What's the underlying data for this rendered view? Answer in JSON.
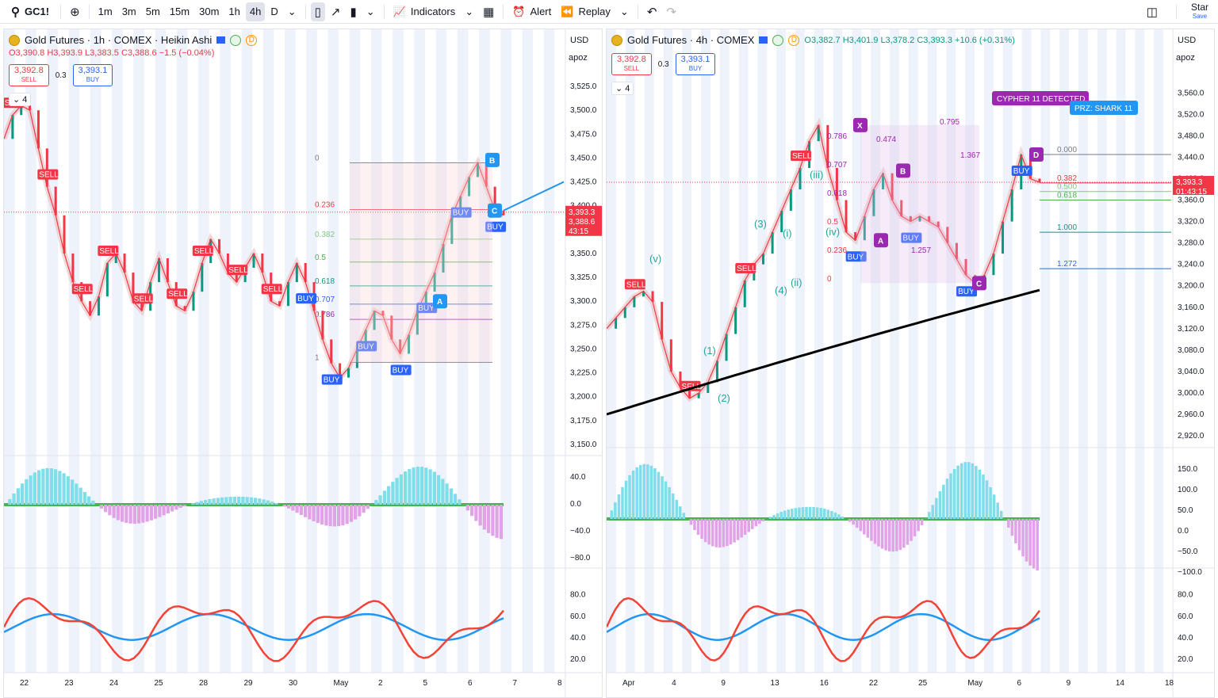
{
  "topbar": {
    "symbol": "GC1!",
    "timeframes": [
      "1m",
      "3m",
      "5m",
      "15m",
      "30m",
      "1h",
      "4h",
      "D"
    ],
    "active_timeframe": "4h",
    "indicators_label": "Indicators",
    "alert_label": "Alert",
    "replay_label": "Replay",
    "star_label": "Star",
    "save_label": "Save"
  },
  "left_chart": {
    "title": "Gold Futures · 1h · COMEX · Heikin Ashi",
    "badge": "D",
    "ohlc": {
      "o": "O3,390.8",
      "h": "H3,393.9",
      "l": "L3,383.5",
      "c": "C3,388.6",
      "chg": "−1.5 (−0.04%)"
    },
    "sell_price": "3,392.8",
    "sell_label": "SELL",
    "spread": "0.3",
    "buy_price": "3,393.1",
    "buy_label": "BUY",
    "collapse_count": "4",
    "currency": "USD",
    "scale_mode": "apoz",
    "price_ticks": [
      "3,525.0",
      "3,500.0",
      "3,475.0",
      "3,450.0",
      "3,425.0",
      "3,400.0",
      "3,375.0",
      "3,350.0",
      "3,325.0",
      "3,300.0",
      "3,275.0",
      "3,250.0",
      "3,225.0",
      "3,200.0",
      "3,175.0",
      "3,150.0"
    ],
    "price_range": [
      3145,
      3535
    ],
    "current_price": "3,393.3",
    "current_price2": "3,388.6",
    "countdown": "43:15",
    "osc_ticks": [
      "40.0",
      "0.0",
      "−40.0",
      "−80.0"
    ],
    "rsi_ticks": [
      "80.0",
      "60.0",
      "40.0",
      "20.0"
    ],
    "time_ticks": [
      "22",
      "23",
      "24",
      "25",
      "28",
      "29",
      "30",
      "May",
      "2",
      "5",
      "6",
      "7",
      "8"
    ],
    "fib_levels": [
      {
        "label": "0",
        "value": 3445
      },
      {
        "label": "0.236",
        "value": 3396
      },
      {
        "label": "0.382",
        "value": 3365
      },
      {
        "label": "0.5",
        "value": 3341
      },
      {
        "label": "0.618",
        "value": 3316
      },
      {
        "label": "0.707",
        "value": 3297
      },
      {
        "label": "0.786",
        "value": 3281
      },
      {
        "label": "1",
        "value": 3236
      }
    ],
    "pattern_points": [
      {
        "label": "A",
        "value": 3300
      },
      {
        "label": "B",
        "value": 3448
      },
      {
        "label": "C",
        "value": 3395
      }
    ],
    "signals": [
      "SELL",
      "SELL",
      "SELL",
      "SELL",
      "SELL",
      "SELL",
      "SELL",
      "SELL",
      "SELL",
      "BUY",
      "BUY",
      "BUY",
      "BUY",
      "BUY",
      "BUY",
      "BUY"
    ],
    "price_series": [
      3470,
      3495,
      3505,
      3500,
      3460,
      3420,
      3390,
      3350,
      3320,
      3300,
      3285,
      3305,
      3340,
      3350,
      3330,
      3300,
      3290,
      3320,
      3345,
      3320,
      3295,
      3290,
      3310,
      3340,
      3365,
      3350,
      3330,
      3320,
      3335,
      3350,
      3330,
      3300,
      3295,
      3320,
      3340,
      3320,
      3290,
      3260,
      3235,
      3220,
      3230,
      3250,
      3270,
      3290,
      3285,
      3260,
      3245,
      3265,
      3290,
      3310,
      3330,
      3360,
      3390,
      3410,
      3430,
      3445,
      3420,
      3395,
      3390
    ]
  },
  "right_chart": {
    "title": "Gold Futures · 4h · COMEX",
    "badge": "D",
    "ohlc": {
      "o": "O3,382.7",
      "h": "H3,401.9",
      "l": "L3,378.2",
      "c": "C3,393.3",
      "chg": "+10.6 (+0.31%)"
    },
    "sell_price": "3,392.8",
    "sell_label": "SELL",
    "spread": "0.3",
    "buy_price": "3,393.1",
    "buy_label": "BUY",
    "collapse_count": "4",
    "currency": "USD",
    "scale_mode": "apoz",
    "price_ticks": [
      "3,560.0",
      "3,520.0",
      "3,480.0",
      "3,440.0",
      "3,400.0",
      "3,360.0",
      "3,320.0",
      "3,280.0",
      "3,240.0",
      "3,200.0",
      "3,160.0",
      "3,120.0",
      "3,080.0",
      "3,040.0",
      "3,000.0",
      "2,960.0",
      "2,920.0"
    ],
    "price_range": [
      2895,
      3590
    ],
    "current_price": "3,393.3",
    "countdown": "01:43:15",
    "osc_ticks": [
      "150.0",
      "100.0",
      "50.0",
      "0.0",
      "−50.0",
      "−100.0"
    ],
    "rsi_ticks": [
      "80.0",
      "60.0",
      "40.0",
      "20.0"
    ],
    "time_ticks": [
      "Apr",
      "4",
      "9",
      "13",
      "16",
      "22",
      "25",
      "May",
      "6",
      "9",
      "14",
      "18"
    ],
    "fib_levels": [
      {
        "label": "0.000",
        "value": 3445
      },
      {
        "label": "0.382",
        "value": 3392
      },
      {
        "label": "0.500",
        "value": 3376
      },
      {
        "label": "0.618",
        "value": 3360
      },
      {
        "label": "1.000",
        "value": 3300
      },
      {
        "label": "1.272",
        "value": 3232
      }
    ],
    "harmonic_points": [
      {
        "label": "X",
        "value": 3500
      },
      {
        "label": "A",
        "value": 3285
      },
      {
        "label": "B",
        "value": 3415
      },
      {
        "label": "C",
        "value": 3205
      },
      {
        "label": "D",
        "value": 3445
      }
    ],
    "harmonic_ratios": [
      "0.795",
      "1.367",
      "0.474",
      "1.257"
    ],
    "inner_fibs": [
      "0.786",
      "0.707",
      "0.618",
      "0.5",
      "0.236",
      "0"
    ],
    "elliott_labels": [
      "(v)",
      "(1)",
      "(2)",
      "(3)",
      "(4)",
      "(i)",
      "(ii)",
      "(iii)",
      "(iv)"
    ],
    "cypher_label": "CYPHER 11 DETECTED",
    "prz_label": "PRZ: SHARK 11",
    "signals": [
      "SELL",
      "SELL",
      "SELL",
      "SELL",
      "BUY",
      "BUY",
      "BUY",
      "BUY"
    ],
    "price_series": [
      3120,
      3140,
      3160,
      3180,
      3190,
      3170,
      3100,
      3040,
      3010,
      2990,
      3000,
      3020,
      3060,
      3110,
      3160,
      3210,
      3240,
      3260,
      3300,
      3340,
      3380,
      3420,
      3470,
      3500,
      3420,
      3360,
      3300,
      3285,
      3330,
      3380,
      3410,
      3360,
      3330,
      3320,
      3330,
      3320,
      3310,
      3280,
      3250,
      3220,
      3205,
      3220,
      3260,
      3320,
      3380,
      3445,
      3400,
      3393
    ]
  }
}
